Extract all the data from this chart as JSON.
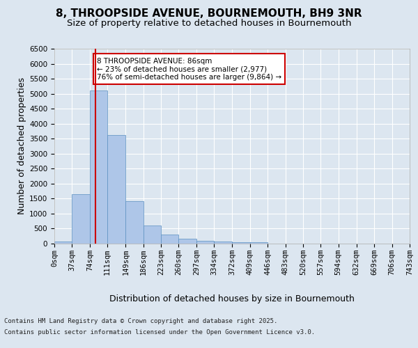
{
  "title_line1": "8, THROOPSIDE AVENUE, BOURNEMOUTH, BH9 3NR",
  "title_line2": "Size of property relative to detached houses in Bournemouth",
  "xlabel": "Distribution of detached houses by size in Bournemouth",
  "ylabel": "Number of detached properties",
  "footer_line1": "Contains HM Land Registry data © Crown copyright and database right 2025.",
  "footer_line2": "Contains public sector information licensed under the Open Government Licence v3.0.",
  "bar_edges": [
    0,
    37,
    74,
    111,
    149,
    186,
    223,
    260,
    297,
    334,
    372,
    409,
    446,
    483,
    520,
    557,
    594,
    632,
    669,
    706,
    743
  ],
  "bar_heights": [
    60,
    1650,
    5100,
    3620,
    1420,
    600,
    310,
    155,
    100,
    75,
    40,
    35,
    10,
    5,
    2,
    2,
    1,
    1,
    1,
    0
  ],
  "bar_color": "#aec6e8",
  "bar_edgecolor": "#5a8fc0",
  "property_size": 86,
  "property_line_color": "#cc0000",
  "annotation_text": "8 THROOPSIDE AVENUE: 86sqm\n← 23% of detached houses are smaller (2,977)\n76% of semi-detached houses are larger (9,864) →",
  "annotation_box_edgecolor": "#cc0000",
  "ylim": [
    0,
    6500
  ],
  "yticks": [
    0,
    500,
    1000,
    1500,
    2000,
    2500,
    3000,
    3500,
    4000,
    4500,
    5000,
    5500,
    6000,
    6500
  ],
  "background_color": "#dce6f0",
  "plot_background": "#dce6f0",
  "grid_color": "#ffffff",
  "tick_label_fontsize": 7.5,
  "axis_label_fontsize": 9,
  "title1_fontsize": 11,
  "title2_fontsize": 9.5,
  "annotation_fontsize": 7.5,
  "footer_fontsize": 6.5
}
